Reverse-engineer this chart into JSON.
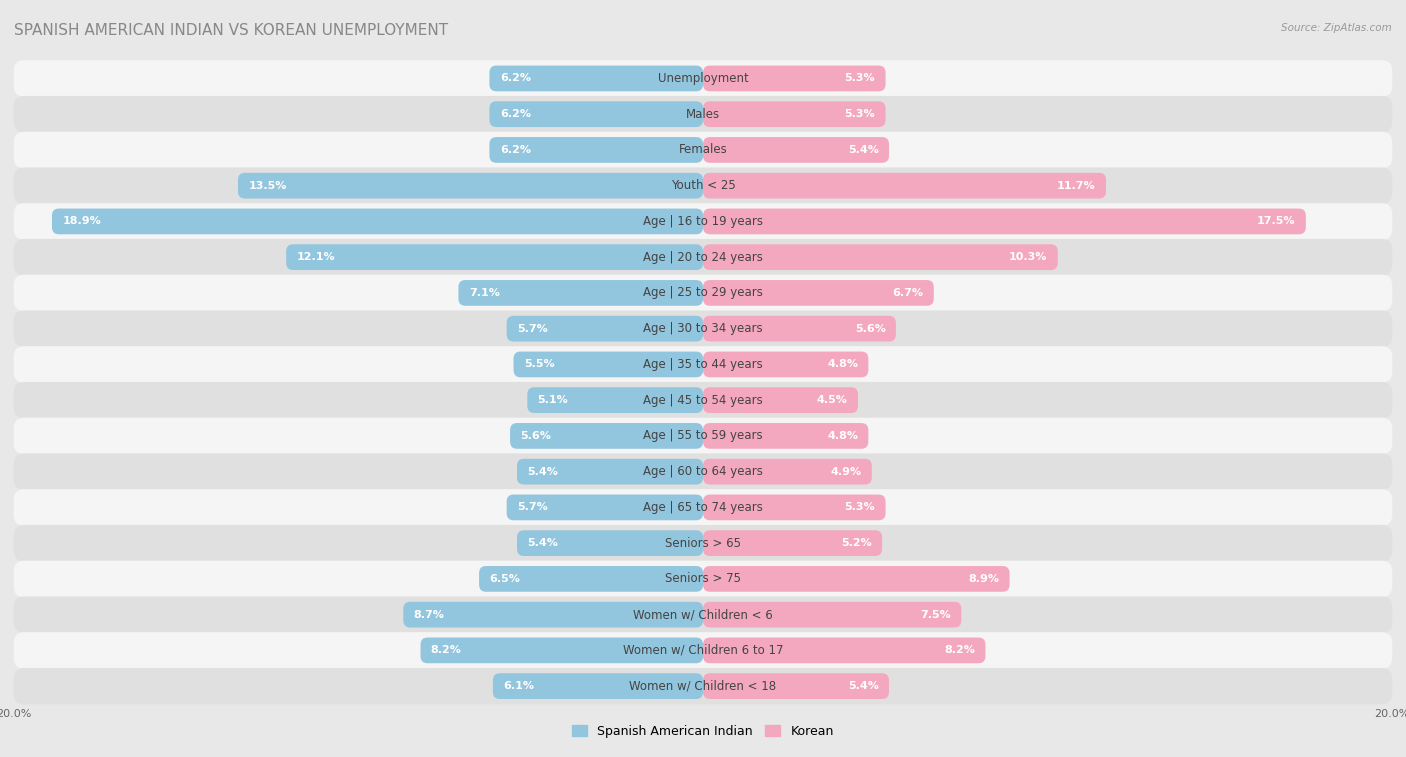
{
  "title": "SPANISH AMERICAN INDIAN VS KOREAN UNEMPLOYMENT",
  "source": "Source: ZipAtlas.com",
  "categories": [
    "Unemployment",
    "Males",
    "Females",
    "Youth < 25",
    "Age | 16 to 19 years",
    "Age | 20 to 24 years",
    "Age | 25 to 29 years",
    "Age | 30 to 34 years",
    "Age | 35 to 44 years",
    "Age | 45 to 54 years",
    "Age | 55 to 59 years",
    "Age | 60 to 64 years",
    "Age | 65 to 74 years",
    "Seniors > 65",
    "Seniors > 75",
    "Women w/ Children < 6",
    "Women w/ Children 6 to 17",
    "Women w/ Children < 18"
  ],
  "left_values": [
    6.2,
    6.2,
    6.2,
    13.5,
    18.9,
    12.1,
    7.1,
    5.7,
    5.5,
    5.1,
    5.6,
    5.4,
    5.7,
    5.4,
    6.5,
    8.7,
    8.2,
    6.1
  ],
  "right_values": [
    5.3,
    5.3,
    5.4,
    11.7,
    17.5,
    10.3,
    6.7,
    5.6,
    4.8,
    4.5,
    4.8,
    4.9,
    5.3,
    5.2,
    8.9,
    7.5,
    8.2,
    5.4
  ],
  "left_color": "#92c5de",
  "right_color": "#f4a8c0",
  "bg_color": "#e8e8e8",
  "row_bg_light": "#f5f5f5",
  "row_bg_dark": "#e0e0e0",
  "max_value": 20.0,
  "left_label": "Spanish American Indian",
  "right_label": "Korean",
  "title_fontsize": 11,
  "label_fontsize": 8.5,
  "value_fontsize": 8,
  "tick_fontsize": 8
}
